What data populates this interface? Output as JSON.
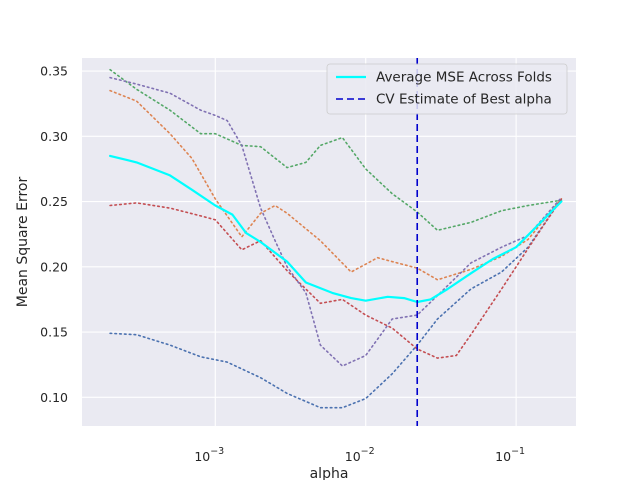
{
  "chart_data": {
    "type": "line",
    "title": "",
    "xlabel": "alpha",
    "ylabel": "Mean Square Error",
    "x_scale": "log",
    "xlim": [
      0.00013,
      0.25
    ],
    "ylim": [
      0.078,
      0.36
    ],
    "grid": true,
    "legend_position": "top-right",
    "x_ticks": [
      {
        "value": 0.001,
        "base": "10",
        "exp": "−3"
      },
      {
        "value": 0.01,
        "base": "10",
        "exp": "−2"
      },
      {
        "value": 0.1,
        "base": "10",
        "exp": "−1"
      }
    ],
    "y_ticks": [
      {
        "value": 0.1,
        "label": "0.10"
      },
      {
        "value": 0.15,
        "label": "0.15"
      },
      {
        "value": 0.2,
        "label": "0.20"
      },
      {
        "value": 0.25,
        "label": "0.25"
      },
      {
        "value": 0.3,
        "label": "0.30"
      },
      {
        "value": 0.35,
        "label": "0.35"
      }
    ],
    "series": [
      {
        "key": "fold-blue",
        "style": "dotted",
        "color": "#4c72b0",
        "x": [
          0.0002,
          0.0003,
          0.0005,
          0.0008,
          0.0012,
          0.002,
          0.003,
          0.005,
          0.007,
          0.01,
          0.015,
          0.022,
          0.03,
          0.05,
          0.08,
          0.12,
          0.2
        ],
        "y": [
          0.149,
          0.148,
          0.14,
          0.131,
          0.127,
          0.115,
          0.103,
          0.092,
          0.092,
          0.099,
          0.118,
          0.14,
          0.16,
          0.183,
          0.196,
          0.215,
          0.252
        ]
      },
      {
        "key": "fold-orange",
        "style": "dotted",
        "color": "#dd8452",
        "x": [
          0.0002,
          0.0003,
          0.0005,
          0.0007,
          0.001,
          0.0015,
          0.002,
          0.0025,
          0.003,
          0.005,
          0.008,
          0.01,
          0.012,
          0.015,
          0.022,
          0.03,
          0.05,
          0.08,
          0.12,
          0.2
        ],
        "y": [
          0.335,
          0.327,
          0.302,
          0.283,
          0.252,
          0.223,
          0.241,
          0.247,
          0.241,
          0.22,
          0.196,
          0.202,
          0.207,
          0.204,
          0.199,
          0.19,
          0.198,
          0.208,
          0.221,
          0.252
        ]
      },
      {
        "key": "fold-green",
        "style": "dotted",
        "color": "#55a868",
        "x": [
          0.0002,
          0.0003,
          0.0005,
          0.0008,
          0.001,
          0.0015,
          0.002,
          0.003,
          0.004,
          0.005,
          0.007,
          0.01,
          0.015,
          0.022,
          0.03,
          0.05,
          0.08,
          0.12,
          0.2
        ],
        "y": [
          0.351,
          0.336,
          0.32,
          0.302,
          0.302,
          0.293,
          0.292,
          0.276,
          0.28,
          0.293,
          0.299,
          0.275,
          0.256,
          0.242,
          0.228,
          0.234,
          0.243,
          0.247,
          0.251
        ]
      },
      {
        "key": "fold-red",
        "style": "dotted",
        "color": "#c44e52",
        "x": [
          0.0002,
          0.0003,
          0.0005,
          0.0008,
          0.001,
          0.0015,
          0.002,
          0.003,
          0.005,
          0.007,
          0.01,
          0.015,
          0.022,
          0.03,
          0.04,
          0.05,
          0.08,
          0.12,
          0.2
        ],
        "y": [
          0.247,
          0.249,
          0.245,
          0.239,
          0.236,
          0.213,
          0.22,
          0.197,
          0.172,
          0.175,
          0.163,
          0.153,
          0.137,
          0.13,
          0.132,
          0.148,
          0.183,
          0.214,
          0.252
        ]
      },
      {
        "key": "fold-purple",
        "style": "dotted",
        "color": "#8172b3",
        "x": [
          0.0002,
          0.0003,
          0.0005,
          0.0008,
          0.001,
          0.0012,
          0.0015,
          0.002,
          0.0025,
          0.003,
          0.004,
          0.005,
          0.007,
          0.01,
          0.015,
          0.022,
          0.03,
          0.05,
          0.08,
          0.12,
          0.2
        ],
        "y": [
          0.345,
          0.34,
          0.333,
          0.32,
          0.316,
          0.312,
          0.293,
          0.245,
          0.22,
          0.2,
          0.18,
          0.14,
          0.124,
          0.132,
          0.16,
          0.163,
          0.178,
          0.203,
          0.215,
          0.224,
          0.253
        ]
      },
      {
        "key": "average",
        "name": "Average MSE Across Folds",
        "style": "solid",
        "color": "#00ffff",
        "x": [
          0.0002,
          0.0003,
          0.0005,
          0.0007,
          0.001,
          0.0013,
          0.0016,
          0.002,
          0.003,
          0.004,
          0.006,
          0.008,
          0.01,
          0.014,
          0.018,
          0.022,
          0.027,
          0.035,
          0.05,
          0.07,
          0.1,
          0.14,
          0.2
        ],
        "y": [
          0.285,
          0.28,
          0.27,
          0.259,
          0.247,
          0.24,
          0.226,
          0.219,
          0.204,
          0.188,
          0.18,
          0.176,
          0.174,
          0.177,
          0.176,
          0.173,
          0.175,
          0.183,
          0.195,
          0.206,
          0.215,
          0.232,
          0.25
        ]
      }
    ],
    "vlines": [
      {
        "key": "best-alpha",
        "name": "CV Estimate of Best alpha",
        "x": 0.022,
        "style": "dashed",
        "color": "#0000cd"
      }
    ],
    "legend": [
      {
        "label": "Average MSE Across Folds",
        "style": "solid",
        "color": "#00ffff"
      },
      {
        "label": "CV Estimate of Best alpha",
        "style": "dashed",
        "color": "#0000cd"
      }
    ]
  }
}
